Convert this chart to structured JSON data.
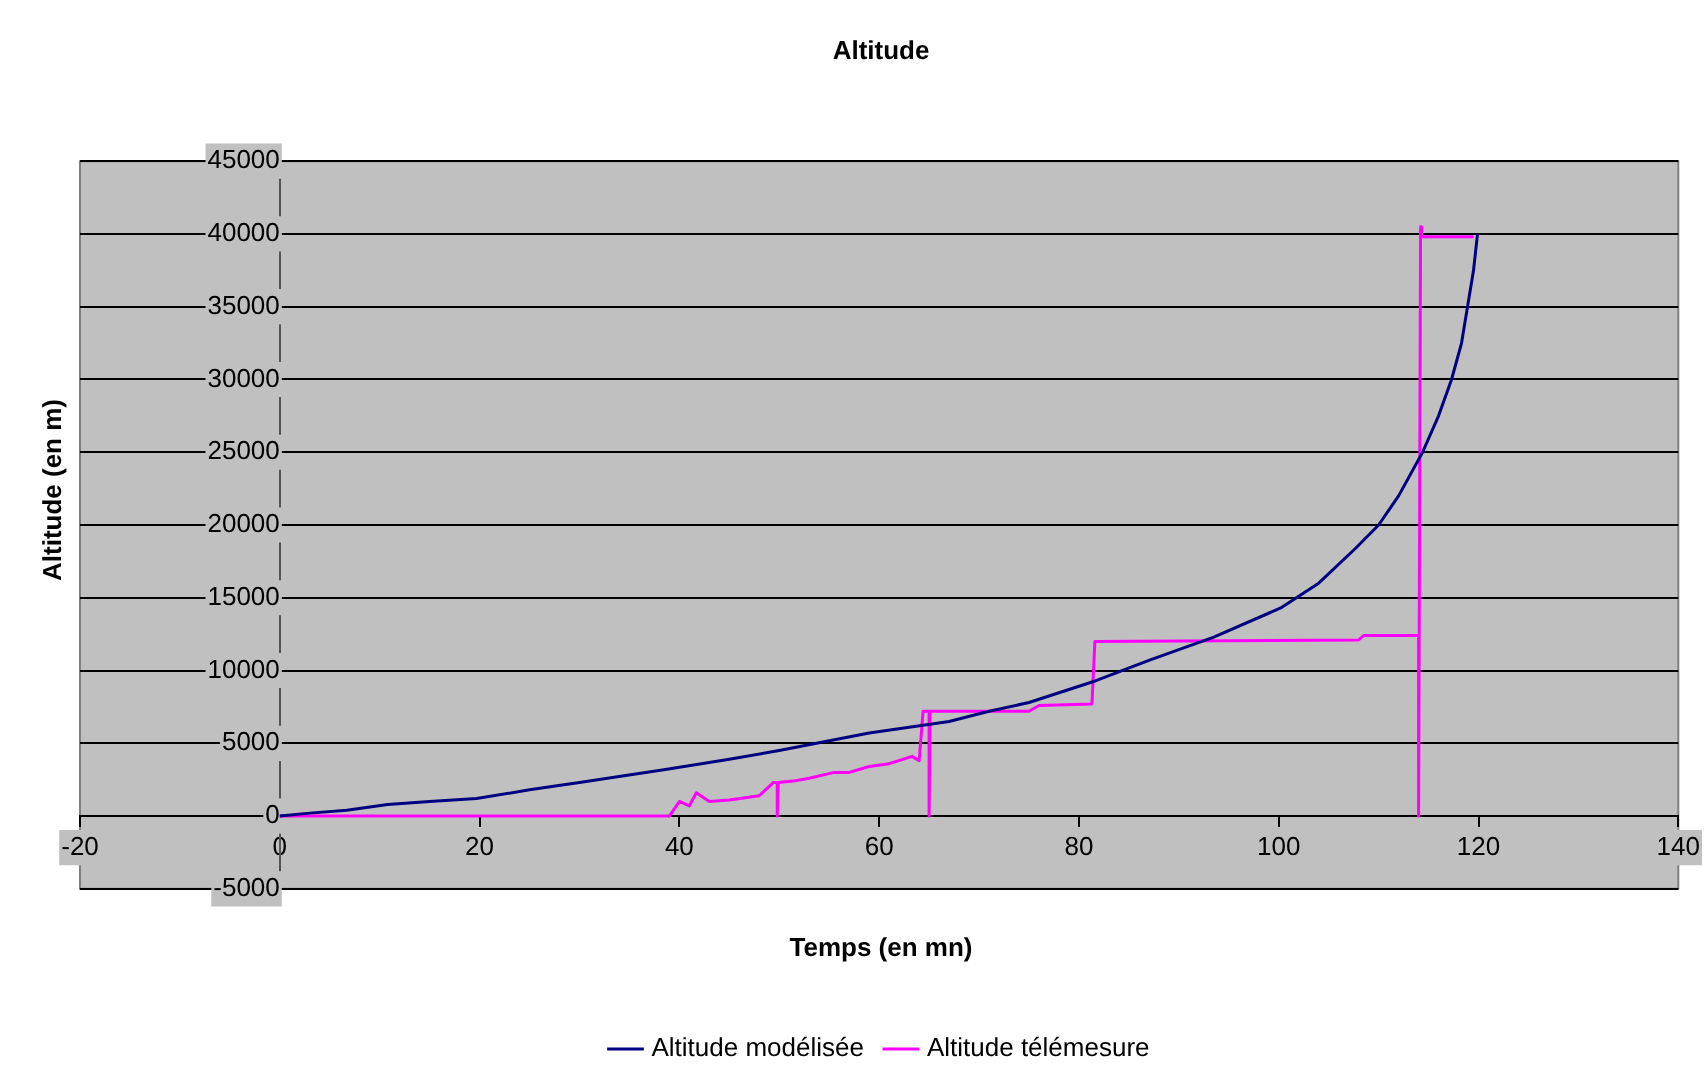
{
  "chart_data": {
    "type": "line",
    "title": "Altitude",
    "xlabel": "Temps (en mn)",
    "ylabel": "Altitude (en m)",
    "xlim": [
      -20,
      140
    ],
    "xticks": [
      -20,
      0,
      20,
      40,
      60,
      80,
      100,
      120,
      140
    ],
    "ylim": [
      -5000,
      45000
    ],
    "yticks": [
      -5000,
      0,
      5000,
      10000,
      15000,
      20000,
      25000,
      30000,
      35000,
      40000,
      45000
    ],
    "grid": "y",
    "legend": "bottom",
    "marker": "none",
    "line_style": "solid",
    "series": [
      {
        "name": "Altitude modélisée",
        "color": "#000080",
        "x": [
          0,
          3,
          6.7,
          10.8,
          15,
          19.7,
          25,
          30,
          38.6,
          45,
          50,
          59,
          67,
          71,
          75,
          81.7,
          87,
          93.5,
          100.2,
          104,
          107.7,
          110,
          112,
          114.4,
          116,
          117.3,
          118.3,
          118.9,
          119.5,
          119.9
        ],
        "values": [
          0,
          200,
          400,
          800,
          1000,
          1200,
          1800,
          2300,
          3200,
          3900,
          4500,
          5700,
          6500,
          7200,
          7800,
          9300,
          10700,
          12300,
          14300,
          16000,
          18400,
          20000,
          22000,
          25000,
          27500,
          30000,
          32500,
          35000,
          37500,
          40000
        ]
      },
      {
        "name": "Altitude télémesure",
        "color": "#ff00ff",
        "x": [
          0,
          39,
          40,
          41,
          41.7,
          43,
          45,
          48,
          49.4,
          49.8,
          49.8,
          49.9,
          51.4,
          53,
          55.5,
          57,
          59,
          61,
          63.3,
          64,
          64.4,
          65,
          65,
          65.1,
          75,
          76,
          81.3,
          81.6,
          108,
          108.5,
          114,
          114,
          114.2,
          114.3,
          119.5
        ],
        "values": [
          0,
          0,
          1000,
          700,
          1600,
          1000,
          1100,
          1400,
          2300,
          2300,
          0,
          2300,
          2400,
          2600,
          3000,
          3000,
          3400,
          3600,
          4100,
          3800,
          7200,
          7200,
          0,
          7200,
          7200,
          7600,
          7700,
          12000,
          12100,
          12400,
          12400,
          0,
          40500,
          39800,
          39800
        ]
      }
    ]
  }
}
